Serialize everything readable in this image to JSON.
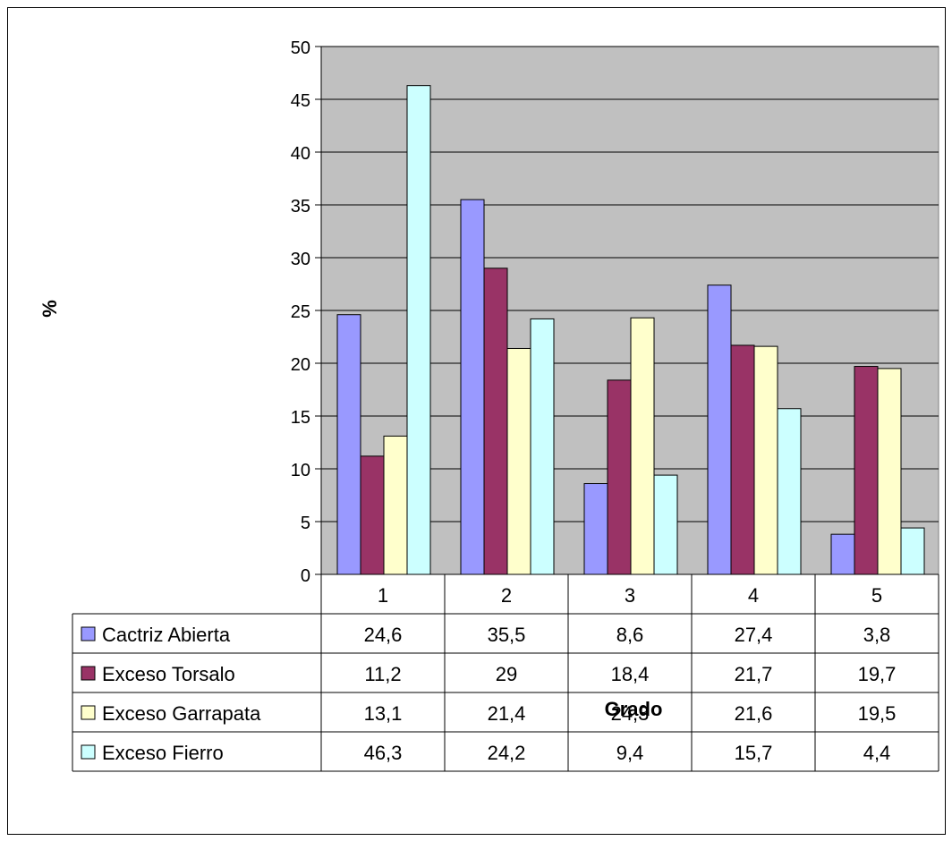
{
  "chart_data": {
    "type": "bar",
    "categories": [
      "1",
      "2",
      "3",
      "4",
      "5"
    ],
    "series": [
      {
        "name": "Cactriz Abierta",
        "color": "#9999ff",
        "values": [
          24.6,
          35.5,
          8.6,
          27.4,
          3.8
        ],
        "labels": [
          "24,6",
          "35,5",
          "8,6",
          "27,4",
          "3,8"
        ]
      },
      {
        "name": "Exceso Torsalo",
        "color": "#993366",
        "values": [
          11.2,
          29,
          18.4,
          21.7,
          19.7
        ],
        "labels": [
          "11,2",
          "29",
          "18,4",
          "21,7",
          "19,7"
        ]
      },
      {
        "name": "Exceso Garrapata",
        "color": "#ffffcc",
        "values": [
          13.1,
          21.4,
          24.3,
          21.6,
          19.5
        ],
        "labels": [
          "13,1",
          "21,4",
          "24,3",
          "21,6",
          "19,5"
        ]
      },
      {
        "name": "Exceso Fierro",
        "color": "#ccffff",
        "values": [
          46.3,
          24.2,
          9.4,
          15.7,
          4.4
        ],
        "labels": [
          "46,3",
          "24,2",
          "9,4",
          "15,7",
          "4,4"
        ]
      }
    ],
    "xlabel": "Grado",
    "ylabel": "%",
    "ylim": [
      0,
      50
    ],
    "yticks": [
      0,
      5,
      10,
      15,
      20,
      25,
      30,
      35,
      40,
      45,
      50
    ],
    "grid": true,
    "plot_background": "#c0c0c0",
    "legend": "data-table"
  }
}
